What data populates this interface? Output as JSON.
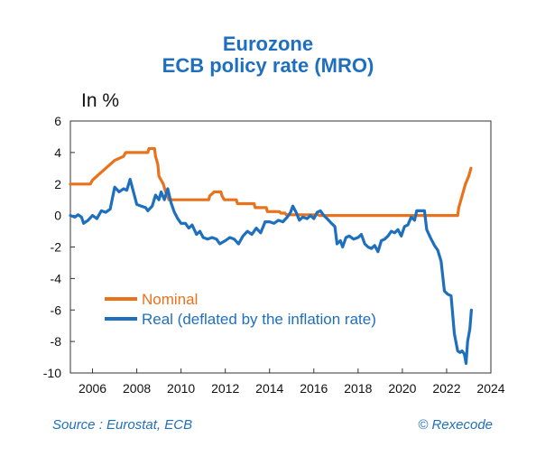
{
  "chart_data": {
    "type": "line",
    "title": "Eurozone",
    "subtitle": "ECB policy rate (MRO)",
    "ylabel": "In %",
    "xlabel": "",
    "xlim": [
      2005.0,
      2024.0
    ],
    "ylim": [
      -10,
      6
    ],
    "xticks": [
      2006,
      2008,
      2010,
      2012,
      2014,
      2016,
      2018,
      2020,
      2022,
      2024
    ],
    "yticks": [
      6,
      4,
      2,
      0,
      -2,
      -4,
      -6,
      -8,
      -10
    ],
    "grid": false,
    "legend_position": "lower-left",
    "series": [
      {
        "name": "Nominal",
        "color": "#e8731c",
        "points": [
          [
            2005.0,
            2.0
          ],
          [
            2005.9,
            2.0
          ],
          [
            2006.0,
            2.25
          ],
          [
            2006.2,
            2.5
          ],
          [
            2006.4,
            2.75
          ],
          [
            2006.6,
            3.0
          ],
          [
            2006.8,
            3.25
          ],
          [
            2007.0,
            3.5
          ],
          [
            2007.4,
            3.75
          ],
          [
            2007.5,
            4.0
          ],
          [
            2008.5,
            4.0
          ],
          [
            2008.55,
            4.25
          ],
          [
            2008.8,
            4.25
          ],
          [
            2008.85,
            3.75
          ],
          [
            2008.95,
            3.25
          ],
          [
            2009.0,
            2.5
          ],
          [
            2009.2,
            2.0
          ],
          [
            2009.3,
            1.5
          ],
          [
            2009.4,
            1.25
          ],
          [
            2009.45,
            1.0
          ],
          [
            2011.25,
            1.0
          ],
          [
            2011.3,
            1.25
          ],
          [
            2011.5,
            1.5
          ],
          [
            2011.8,
            1.5
          ],
          [
            2011.85,
            1.25
          ],
          [
            2011.95,
            1.0
          ],
          [
            2012.5,
            1.0
          ],
          [
            2012.55,
            0.75
          ],
          [
            2013.3,
            0.75
          ],
          [
            2013.35,
            0.5
          ],
          [
            2013.85,
            0.5
          ],
          [
            2013.9,
            0.25
          ],
          [
            2014.45,
            0.25
          ],
          [
            2014.5,
            0.15
          ],
          [
            2014.7,
            0.15
          ],
          [
            2014.75,
            0.05
          ],
          [
            2016.2,
            0.05
          ],
          [
            2016.25,
            0.0
          ],
          [
            2022.5,
            0.0
          ],
          [
            2022.55,
            0.5
          ],
          [
            2022.7,
            1.25
          ],
          [
            2022.85,
            2.0
          ],
          [
            2023.0,
            2.5
          ],
          [
            2023.1,
            3.0
          ]
        ]
      },
      {
        "name": "Real (deflated by the inflation rate)",
        "color": "#1f6fbf",
        "points": [
          [
            2005.0,
            0.0
          ],
          [
            2005.2,
            -0.1
          ],
          [
            2005.35,
            0.05
          ],
          [
            2005.5,
            -0.1
          ],
          [
            2005.6,
            -0.5
          ],
          [
            2005.8,
            -0.3
          ],
          [
            2006.0,
            0.0
          ],
          [
            2006.2,
            -0.2
          ],
          [
            2006.4,
            0.3
          ],
          [
            2006.6,
            0.2
          ],
          [
            2006.8,
            0.4
          ],
          [
            2007.0,
            1.8
          ],
          [
            2007.2,
            1.5
          ],
          [
            2007.4,
            1.7
          ],
          [
            2007.55,
            1.6
          ],
          [
            2007.7,
            2.3
          ],
          [
            2007.85,
            1.5
          ],
          [
            2008.0,
            0.7
          ],
          [
            2008.2,
            0.6
          ],
          [
            2008.4,
            0.5
          ],
          [
            2008.5,
            0.3
          ],
          [
            2008.7,
            0.6
          ],
          [
            2008.85,
            1.3
          ],
          [
            2009.0,
            1.0
          ],
          [
            2009.1,
            1.5
          ],
          [
            2009.25,
            1.0
          ],
          [
            2009.4,
            1.7
          ],
          [
            2009.55,
            0.8
          ],
          [
            2009.7,
            0.2
          ],
          [
            2009.85,
            -0.2
          ],
          [
            2010.0,
            -0.5
          ],
          [
            2010.2,
            -0.5
          ],
          [
            2010.35,
            -0.8
          ],
          [
            2010.5,
            -0.6
          ],
          [
            2010.7,
            -1.2
          ],
          [
            2010.85,
            -1.0
          ],
          [
            2011.0,
            -1.4
          ],
          [
            2011.2,
            -1.5
          ],
          [
            2011.4,
            -1.4
          ],
          [
            2011.6,
            -1.5
          ],
          [
            2011.75,
            -1.8
          ],
          [
            2012.0,
            -1.6
          ],
          [
            2012.2,
            -1.4
          ],
          [
            2012.4,
            -1.5
          ],
          [
            2012.6,
            -1.8
          ],
          [
            2012.8,
            -1.3
          ],
          [
            2013.0,
            -1.0
          ],
          [
            2013.2,
            -1.2
          ],
          [
            2013.4,
            -0.8
          ],
          [
            2013.6,
            -1.1
          ],
          [
            2013.8,
            -0.4
          ],
          [
            2014.0,
            -0.4
          ],
          [
            2014.2,
            -0.5
          ],
          [
            2014.4,
            -0.3
          ],
          [
            2014.6,
            -0.4
          ],
          [
            2014.8,
            -0.1
          ],
          [
            2014.95,
            0.2
          ],
          [
            2015.05,
            0.6
          ],
          [
            2015.2,
            0.2
          ],
          [
            2015.35,
            -0.3
          ],
          [
            2015.5,
            -0.1
          ],
          [
            2015.7,
            -0.2
          ],
          [
            2015.85,
            0.0
          ],
          [
            2016.0,
            -0.2
          ],
          [
            2016.15,
            0.2
          ],
          [
            2016.3,
            0.3
          ],
          [
            2016.45,
            0.0
          ],
          [
            2016.6,
            -0.2
          ],
          [
            2016.8,
            -0.5
          ],
          [
            2016.95,
            -0.7
          ],
          [
            2017.05,
            -1.8
          ],
          [
            2017.2,
            -1.6
          ],
          [
            2017.3,
            -2.0
          ],
          [
            2017.45,
            -1.4
          ],
          [
            2017.6,
            -1.3
          ],
          [
            2017.8,
            -1.5
          ],
          [
            2018.0,
            -1.4
          ],
          [
            2018.15,
            -1.2
          ],
          [
            2018.3,
            -1.8
          ],
          [
            2018.45,
            -2.0
          ],
          [
            2018.6,
            -2.1
          ],
          [
            2018.75,
            -1.9
          ],
          [
            2018.9,
            -2.3
          ],
          [
            2019.05,
            -1.6
          ],
          [
            2019.2,
            -1.5
          ],
          [
            2019.35,
            -1.3
          ],
          [
            2019.5,
            -1.0
          ],
          [
            2019.65,
            -1.1
          ],
          [
            2019.8,
            -0.9
          ],
          [
            2019.95,
            -1.3
          ],
          [
            2020.1,
            -0.7
          ],
          [
            2020.25,
            -0.6
          ],
          [
            2020.4,
            -0.1
          ],
          [
            2020.55,
            -0.3
          ],
          [
            2020.65,
            0.3
          ],
          [
            2020.8,
            0.3
          ],
          [
            2021.0,
            0.3
          ],
          [
            2021.1,
            -0.9
          ],
          [
            2021.3,
            -1.5
          ],
          [
            2021.45,
            -1.9
          ],
          [
            2021.6,
            -2.2
          ],
          [
            2021.75,
            -2.9
          ],
          [
            2021.9,
            -4.8
          ],
          [
            2022.05,
            -5.0
          ],
          [
            2022.2,
            -5.1
          ],
          [
            2022.35,
            -7.5
          ],
          [
            2022.5,
            -8.6
          ],
          [
            2022.6,
            -8.7
          ],
          [
            2022.7,
            -8.6
          ],
          [
            2022.8,
            -8.8
          ],
          [
            2022.88,
            -9.4
          ],
          [
            2022.95,
            -8.0
          ],
          [
            2023.05,
            -7.2
          ],
          [
            2023.12,
            -6.0
          ]
        ]
      }
    ],
    "source": "Source : Eurostat, ECB",
    "credit": "© Rexecode"
  }
}
